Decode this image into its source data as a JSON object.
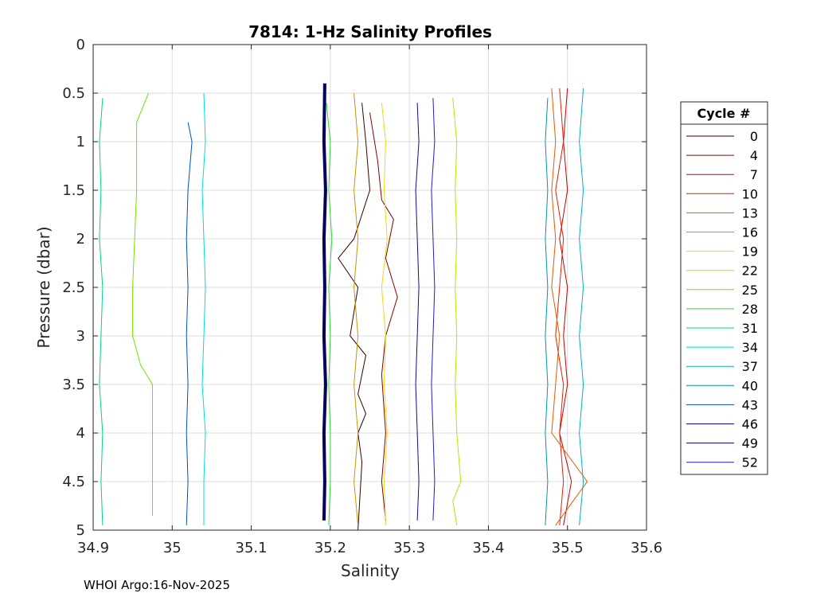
{
  "chart_data": {
    "type": "line",
    "title": "7814: 1-Hz Salinity Profiles",
    "xlabel": "Salinity",
    "ylabel": "Pressure (dbar)",
    "xlim": [
      34.9,
      35.6
    ],
    "ylim": [
      0,
      5
    ],
    "y_reversed": true,
    "grid": true,
    "x_ticks": [
      "34.9",
      "35",
      "35.1",
      "35.2",
      "35.3",
      "35.4",
      "35.5",
      "35.6"
    ],
    "y_ticks": [
      "0",
      "0.5",
      "1",
      "1.5",
      "2",
      "2.5",
      "3",
      "3.5",
      "4",
      "4.5",
      "5"
    ],
    "legend": {
      "title": "Cycle #",
      "placement": "right",
      "entries": [
        "0",
        "4",
        "7",
        "10",
        "13",
        "16",
        "19",
        "22",
        "25",
        "28",
        "31",
        "34",
        "37",
        "40",
        "43",
        "46",
        "49",
        "52"
      ]
    },
    "series": [
      {
        "name": "0",
        "color": "#3a0000",
        "values": [
          [
            35.24,
            0.6
          ],
          [
            35.245,
            1.0
          ],
          [
            35.25,
            1.5
          ],
          [
            35.23,
            2.0
          ],
          [
            35.21,
            2.2
          ],
          [
            35.235,
            2.5
          ],
          [
            35.225,
            3.0
          ],
          [
            35.245,
            3.2
          ],
          [
            35.235,
            3.6
          ],
          [
            35.245,
            3.8
          ],
          [
            35.235,
            4.0
          ],
          [
            35.24,
            4.3
          ],
          [
            35.235,
            5.0
          ]
        ]
      },
      {
        "name": "4",
        "color": "#8b0000",
        "values": [
          [
            35.25,
            0.7
          ],
          [
            35.26,
            1.2
          ],
          [
            35.265,
            1.6
          ],
          [
            35.28,
            1.8
          ],
          [
            35.27,
            2.2
          ],
          [
            35.285,
            2.6
          ],
          [
            35.27,
            3.0
          ],
          [
            35.265,
            3.4
          ],
          [
            35.27,
            4.0
          ],
          [
            35.265,
            4.5
          ],
          [
            35.27,
            4.9
          ]
        ]
      },
      {
        "name": "7",
        "color": "#c80000",
        "values": [
          [
            35.5,
            0.45
          ],
          [
            35.495,
            1.0
          ],
          [
            35.5,
            1.5
          ],
          [
            35.49,
            2.0
          ],
          [
            35.5,
            2.5
          ],
          [
            35.495,
            3.0
          ],
          [
            35.5,
            3.5
          ],
          [
            35.49,
            4.0
          ],
          [
            35.505,
            4.5
          ],
          [
            35.495,
            4.95
          ]
        ]
      },
      {
        "name": "10",
        "color": "#e61e00",
        "values": [
          [
            35.49,
            0.45
          ],
          [
            35.495,
            1.0
          ],
          [
            35.485,
            1.5
          ],
          [
            35.495,
            2.0
          ],
          [
            35.49,
            2.5
          ],
          [
            35.485,
            3.0
          ],
          [
            35.495,
            3.5
          ],
          [
            35.49,
            4.0
          ],
          [
            35.495,
            4.5
          ],
          [
            35.49,
            4.95
          ]
        ]
      },
      {
        "name": "13",
        "color": "#e65a00",
        "values": [
          [
            35.48,
            0.45
          ],
          [
            35.485,
            1.0
          ],
          [
            35.48,
            1.5
          ],
          [
            35.485,
            2.0
          ],
          [
            35.48,
            2.5
          ],
          [
            35.49,
            3.0
          ],
          [
            35.485,
            3.5
          ],
          [
            35.48,
            4.0
          ],
          [
            35.525,
            4.5
          ],
          [
            35.485,
            4.95
          ]
        ]
      },
      {
        "name": "16",
        "color": "#c89600",
        "values": [
          [
            35.23,
            0.5
          ],
          [
            35.235,
            1.0
          ],
          [
            35.23,
            1.5
          ],
          [
            35.235,
            2.0
          ],
          [
            35.23,
            2.5
          ],
          [
            35.235,
            3.0
          ],
          [
            35.23,
            3.5
          ],
          [
            35.235,
            4.0
          ],
          [
            35.23,
            4.5
          ],
          [
            35.235,
            4.95
          ]
        ]
      },
      {
        "name": "19",
        "color": "#e6dc14",
        "values": [
          [
            35.265,
            0.6
          ],
          [
            35.27,
            1.0
          ],
          [
            35.268,
            1.5
          ],
          [
            35.272,
            2.0
          ],
          [
            35.265,
            2.5
          ],
          [
            35.27,
            3.0
          ],
          [
            35.268,
            3.5
          ],
          [
            35.272,
            4.0
          ],
          [
            35.268,
            4.5
          ],
          [
            35.27,
            4.95
          ]
        ]
      },
      {
        "name": "22",
        "color": "#b4e600",
        "values": [
          [
            35.355,
            0.55
          ],
          [
            35.36,
            1.0
          ],
          [
            35.358,
            1.5
          ],
          [
            35.36,
            2.0
          ],
          [
            35.358,
            2.5
          ],
          [
            35.36,
            3.0
          ],
          [
            35.358,
            3.5
          ],
          [
            35.36,
            4.0
          ],
          [
            35.365,
            4.5
          ],
          [
            35.355,
            4.7
          ],
          [
            35.36,
            4.95
          ]
        ]
      },
      {
        "name": "25",
        "color": "#6ee600",
        "values": [
          [
            34.97,
            0.5
          ],
          [
            34.955,
            0.8
          ],
          [
            34.955,
            1.5
          ],
          [
            34.95,
            2.5
          ],
          [
            34.95,
            3.0
          ],
          [
            34.96,
            3.3
          ],
          [
            34.975,
            3.5
          ],
          [
            34.975,
            4.0
          ],
          [
            34.975,
            4.5
          ],
          [
            34.975,
            4.85
          ]
        ]
      },
      {
        "name": "28",
        "color": "#28dc32",
        "values": [
          [
            35.195,
            0.6
          ],
          [
            35.2,
            1.0
          ],
          [
            35.198,
            1.5
          ],
          [
            35.202,
            2.0
          ],
          [
            35.198,
            2.5
          ],
          [
            35.2,
            3.0
          ],
          [
            35.198,
            3.5
          ],
          [
            35.2,
            4.0
          ],
          [
            35.2,
            4.5
          ],
          [
            35.198,
            4.95
          ]
        ]
      },
      {
        "name": "31",
        "color": "#00d28c",
        "values": [
          [
            34.912,
            0.55
          ],
          [
            34.908,
            1.0
          ],
          [
            34.91,
            1.5
          ],
          [
            34.908,
            2.0
          ],
          [
            34.912,
            2.5
          ],
          [
            34.91,
            3.0
          ],
          [
            34.908,
            3.5
          ],
          [
            34.912,
            4.0
          ],
          [
            34.91,
            4.5
          ],
          [
            34.912,
            4.95
          ]
        ]
      },
      {
        "name": "34",
        "color": "#00dcdc",
        "values": [
          [
            35.04,
            0.5
          ],
          [
            35.042,
            1.0
          ],
          [
            35.038,
            1.5
          ],
          [
            35.04,
            2.0
          ],
          [
            35.042,
            2.5
          ],
          [
            35.04,
            3.0
          ],
          [
            35.038,
            3.5
          ],
          [
            35.042,
            4.0
          ],
          [
            35.04,
            4.5
          ],
          [
            35.04,
            4.95
          ]
        ]
      },
      {
        "name": "37",
        "color": "#00b4be",
        "values": [
          [
            35.52,
            0.45
          ],
          [
            35.515,
            1.0
          ],
          [
            35.52,
            1.5
          ],
          [
            35.515,
            2.0
          ],
          [
            35.52,
            2.5
          ],
          [
            35.515,
            3.0
          ],
          [
            35.52,
            3.5
          ],
          [
            35.515,
            4.0
          ],
          [
            35.52,
            4.5
          ],
          [
            35.515,
            4.95
          ]
        ]
      },
      {
        "name": "40",
        "color": "#0096aa",
        "values": [
          [
            35.475,
            0.55
          ],
          [
            35.472,
            1.0
          ],
          [
            35.475,
            1.5
          ],
          [
            35.472,
            2.0
          ],
          [
            35.475,
            2.5
          ],
          [
            35.472,
            3.0
          ],
          [
            35.475,
            3.5
          ],
          [
            35.472,
            4.0
          ],
          [
            35.475,
            4.5
          ],
          [
            35.472,
            4.95
          ]
        ]
      },
      {
        "name": "43",
        "color": "#0050be",
        "values": [
          [
            35.02,
            0.8
          ],
          [
            35.025,
            1.0
          ],
          [
            35.02,
            1.5
          ],
          [
            35.018,
            2.0
          ],
          [
            35.02,
            2.5
          ],
          [
            35.018,
            3.0
          ],
          [
            35.02,
            3.5
          ],
          [
            35.018,
            4.0
          ],
          [
            35.02,
            4.5
          ],
          [
            35.018,
            4.95
          ]
        ]
      },
      {
        "name": "46",
        "color": "#0a0aaa",
        "values": [
          [
            35.31,
            0.6
          ],
          [
            35.312,
            1.0
          ],
          [
            35.308,
            1.5
          ],
          [
            35.31,
            2.0
          ],
          [
            35.312,
            2.5
          ],
          [
            35.31,
            3.0
          ],
          [
            35.308,
            3.5
          ],
          [
            35.31,
            4.0
          ],
          [
            35.312,
            4.5
          ],
          [
            35.31,
            4.9
          ]
        ]
      },
      {
        "name": "49",
        "color": "#00005a",
        "values": [
          [
            35.193,
            0.4
          ],
          [
            35.192,
            1.0
          ],
          [
            35.194,
            1.5
          ],
          [
            35.192,
            2.0
          ],
          [
            35.193,
            2.5
          ],
          [
            35.192,
            3.0
          ],
          [
            35.194,
            3.5
          ],
          [
            35.192,
            4.0
          ],
          [
            35.193,
            4.5
          ],
          [
            35.192,
            4.9
          ]
        ]
      },
      {
        "name": "52",
        "color": "#1e1ed2",
        "values": [
          [
            35.33,
            0.55
          ],
          [
            35.332,
            1.0
          ],
          [
            35.328,
            1.5
          ],
          [
            35.33,
            2.0
          ],
          [
            35.332,
            2.5
          ],
          [
            35.33,
            3.0
          ],
          [
            35.328,
            3.5
          ],
          [
            35.33,
            4.0
          ],
          [
            35.332,
            4.5
          ],
          [
            35.33,
            4.9
          ]
        ]
      }
    ],
    "footer": "WHOI Argo:16-Nov-2025"
  }
}
